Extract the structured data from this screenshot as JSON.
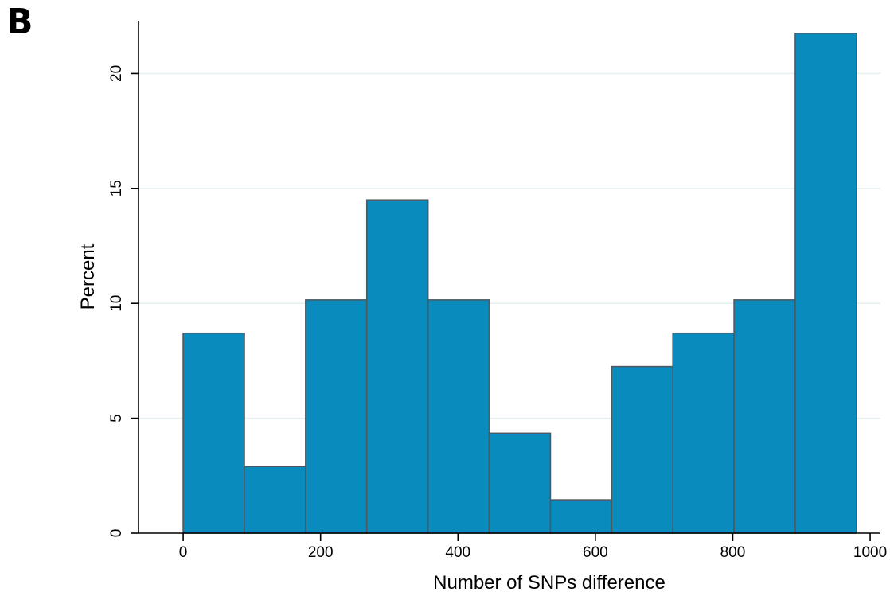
{
  "panel_label": "B",
  "chart_data": {
    "type": "bar",
    "subtype": "histogram",
    "xlabel": "Number of SNPs difference",
    "ylabel": "Percent",
    "bin_edges": [
      0,
      89.1,
      178.2,
      267.3,
      356.4,
      445.5,
      534.6,
      623.7,
      712.8,
      801.9,
      891,
      980.1
    ],
    "values": [
      8.7,
      2.9,
      10.15,
      14.5,
      10.15,
      4.35,
      1.45,
      7.25,
      8.7,
      10.15,
      21.75
    ],
    "xlim": [
      -65,
      1015
    ],
    "ylim": [
      0,
      22.3
    ],
    "xticks": [
      0,
      200,
      400,
      600,
      800,
      1000
    ],
    "xtick_labels": [
      "0",
      "200",
      "400",
      "600",
      "800",
      "1000"
    ],
    "yticks": [
      0,
      5,
      10,
      15,
      20
    ],
    "ytick_labels": [
      "0",
      "5",
      "10",
      "15",
      "20"
    ],
    "grid": "horizontal",
    "colors": {
      "bar_fill": "#0a8bbe",
      "bar_edge": "#4a5a63",
      "grid": "#e4eff2",
      "axis": "#000000"
    }
  }
}
